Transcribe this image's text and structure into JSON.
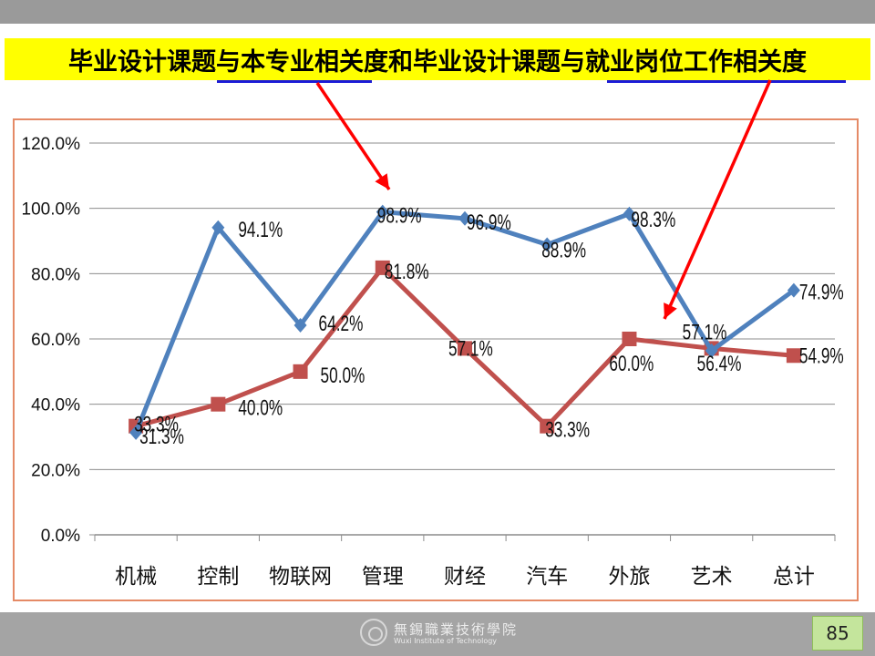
{
  "slide": {
    "title": "毕业设计课题与本专业相关度和毕业设计课题与就业岗位工作相关度",
    "page_number": "85",
    "footer_school_cn": "無錫職業技術學院",
    "footer_school_en": "Wuxi Institute of Technology"
  },
  "colors": {
    "series1": "#4f81bd",
    "series2": "#c0504d",
    "arrow": "#ff0000",
    "banner": "#ffff00",
    "frame": "#e58a66"
  },
  "chart_data": {
    "type": "line",
    "categories": [
      "机械",
      "控制",
      "物联网",
      "管理",
      "财经",
      "汽车",
      "外旅",
      "艺术",
      "总计"
    ],
    "series": [
      {
        "values": [
          31.3,
          94.1,
          64.2,
          98.9,
          96.9,
          88.9,
          98.3,
          56.4,
          74.9
        ],
        "labels": [
          "31.3%",
          "94.1%",
          "64.2%",
          "98.9%",
          "96.9%",
          "88.9%",
          "98.3%",
          "56.4%",
          "74.9%"
        ],
        "marker": "diamond"
      },
      {
        "values": [
          33.3,
          40.0,
          50.0,
          81.8,
          57.1,
          33.3,
          60.0,
          57.1,
          54.9
        ],
        "labels": [
          "33.3%",
          "40.0%",
          "50.0%",
          "81.8%",
          "57.1%",
          "33.3%",
          "60.0%",
          "57.1%",
          "54.9%"
        ],
        "marker": "square"
      }
    ],
    "y_ticks": [
      "0.0%",
      "20.0%",
      "40.0%",
      "60.0%",
      "80.0%",
      "100.0%",
      "120.0%"
    ],
    "ylim": [
      0,
      120
    ],
    "grid": true,
    "legend": "none"
  }
}
